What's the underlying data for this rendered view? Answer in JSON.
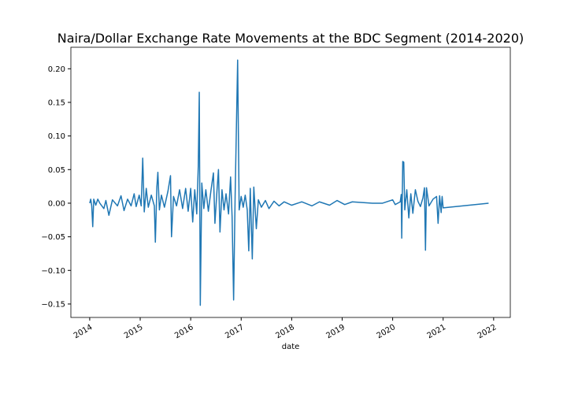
{
  "chart_data": {
    "type": "line",
    "title": "Naira/Dollar Exchange Rate Movements at the BDC Segment (2014-2020)",
    "xlabel": "date",
    "color": "#1f77b4",
    "x": [
      2014.0,
      2014.02,
      2014.04,
      2014.06,
      2014.08,
      2014.12,
      2014.16,
      2014.2,
      2014.28,
      2014.32,
      2014.38,
      2014.45,
      2014.55,
      2014.62,
      2014.68,
      2014.75,
      2014.82,
      2014.88,
      2014.92,
      2014.98,
      2015.02,
      2015.05,
      2015.08,
      2015.12,
      2015.16,
      2015.22,
      2015.28,
      2015.3,
      2015.33,
      2015.35,
      2015.38,
      2015.42,
      2015.48,
      2015.55,
      2015.6,
      2015.62,
      2015.66,
      2015.72,
      2015.78,
      2015.84,
      2015.9,
      2015.95,
      2016.0,
      2016.04,
      2016.08,
      2016.12,
      2016.15,
      2016.17,
      2016.19,
      2016.22,
      2016.26,
      2016.3,
      2016.35,
      2016.4,
      2016.45,
      2016.48,
      2016.52,
      2016.55,
      2016.58,
      2016.62,
      2016.66,
      2016.7,
      2016.75,
      2016.79,
      2016.82,
      2016.85,
      2016.88,
      2016.93,
      2016.96,
      2017.0,
      2017.04,
      2017.08,
      2017.12,
      2017.15,
      2017.18,
      2017.22,
      2017.25,
      2017.3,
      2017.34,
      2017.4,
      2017.48,
      2017.55,
      2017.65,
      2017.75,
      2017.85,
      2018.0,
      2018.2,
      2018.4,
      2018.55,
      2018.75,
      2018.9,
      2019.05,
      2019.2,
      2019.4,
      2019.6,
      2019.8,
      2020.0,
      2020.05,
      2020.15,
      2020.17,
      2020.18,
      2020.2,
      2020.22,
      2020.24,
      2020.28,
      2020.32,
      2020.36,
      2020.4,
      2020.45,
      2020.5,
      2020.55,
      2020.6,
      2020.63,
      2020.65,
      2020.67,
      2020.72,
      2020.8,
      2020.87,
      2020.9,
      2020.93,
      2020.96,
      2020.98,
      2021.0,
      2021.9
    ],
    "values": [
      0,
      0.006,
      -0.004,
      -0.035,
      0.006,
      -0.003,
      0.006,
      0,
      -0.008,
      0.004,
      -0.018,
      0.005,
      -0.004,
      0.011,
      -0.011,
      0.006,
      -0.004,
      0.014,
      -0.005,
      0.012,
      -0.004,
      0.067,
      -0.013,
      0.022,
      -0.006,
      0.012,
      -0.004,
      -0.058,
      0.024,
      0.046,
      -0.01,
      0.012,
      -0.006,
      0.018,
      0.041,
      -0.05,
      0.01,
      -0.004,
      0.02,
      -0.008,
      0.022,
      -0.012,
      0.022,
      -0.028,
      0.02,
      -0.016,
      0.055,
      0.165,
      -0.152,
      0.03,
      -0.008,
      0.02,
      -0.012,
      0.018,
      0.045,
      -0.03,
      0.018,
      0.05,
      -0.043,
      0.02,
      -0.01,
      0.014,
      -0.016,
      0.039,
      -0.02,
      -0.144,
      0.01,
      0.213,
      -0.01,
      0.01,
      -0.006,
      0.012,
      -0.01,
      -0.071,
      0.022,
      -0.083,
      0.024,
      -0.038,
      0.005,
      -0.006,
      0.004,
      -0.008,
      0.003,
      -0.004,
      0.002,
      -0.003,
      0.002,
      -0.004,
      0.002,
      -0.003,
      0.004,
      -0.002,
      0.002,
      0.001,
      0,
      0,
      0.005,
      -0.002,
      0.002,
      0.013,
      -0.052,
      0.062,
      0.061,
      -0.01,
      0.02,
      -0.022,
      0.014,
      -0.015,
      0.02,
      0.003,
      -0.005,
      0.008,
      0.023,
      -0.07,
      0.023,
      -0.004,
      0.006,
      0.01,
      -0.03,
      0.011,
      -0.014,
      0.01,
      -0.007,
      0
    ],
    "xlim": [
      2013.627,
      2022.33
    ],
    "xticks": [
      2014,
      2015,
      2016,
      2017,
      2018,
      2019,
      2020,
      2021,
      2022
    ],
    "ylim": [
      -0.17,
      0.232
    ],
    "yticks": [
      {
        "value": -0.15,
        "label": "−0.15"
      },
      {
        "value": -0.1,
        "label": "−0.10"
      },
      {
        "value": -0.05,
        "label": "−0.05"
      },
      {
        "value": 0,
        "label": "0.00"
      },
      {
        "value": 0.05,
        "label": "0.05"
      },
      {
        "value": 0.1,
        "label": "0.10"
      },
      {
        "value": 0.15,
        "label": "0.15"
      },
      {
        "value": 0.2,
        "label": "0.20"
      }
    ],
    "grid": false
  }
}
